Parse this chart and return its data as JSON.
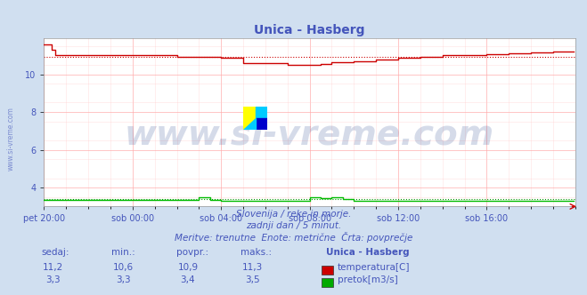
{
  "title": "Unica - Hasberg",
  "bg_color": "#d0dff0",
  "plot_bg_color": "#ffffff",
  "text_color": "#4455bb",
  "grid_color_major": "#ffaaaa",
  "grid_color_minor": "#ffcccc",
  "xlabel_ticks": [
    "pet 20:00",
    "sob 00:00",
    "sob 04:00",
    "sob 08:00",
    "sob 12:00",
    "sob 16:00"
  ],
  "ylabel_ticks": [
    4,
    6,
    8,
    10
  ],
  "ylim": [
    3.0,
    11.9
  ],
  "xlim": [
    0,
    288
  ],
  "avg_temp": 10.9,
  "avg_flow": 3.4,
  "subtitle1": "Slovenija / reke in morje.",
  "subtitle2": "zadnji dan / 5 minut.",
  "subtitle3": "Meritve: trenutne  Enote: metrične  Črta: povprečje",
  "table_headers": [
    "sedaj:",
    "min.:",
    "povpr.:",
    "maks.:",
    "Unica - Hasberg"
  ],
  "row1": [
    "11,2",
    "10,6",
    "10,9",
    "11,3"
  ],
  "row2": [
    "3,3",
    "3,3",
    "3,4",
    "3,5"
  ],
  "legend_labels": [
    "temperatura[C]",
    "pretok[m3/s]"
  ],
  "legend_colors": [
    "#cc0000",
    "#00aa00"
  ],
  "temp_color": "#cc0000",
  "flow_color_line": "#00bb00",
  "flow_color_avg": "#009900",
  "watermark_text": "www.si-vreme.com",
  "watermark_color": "#1a3a8a",
  "watermark_alpha": 0.18,
  "watermark_fontsize": 28,
  "title_fontsize": 10,
  "tick_fontsize": 7,
  "subtitle_fontsize": 7.5,
  "table_fontsize": 7.5
}
